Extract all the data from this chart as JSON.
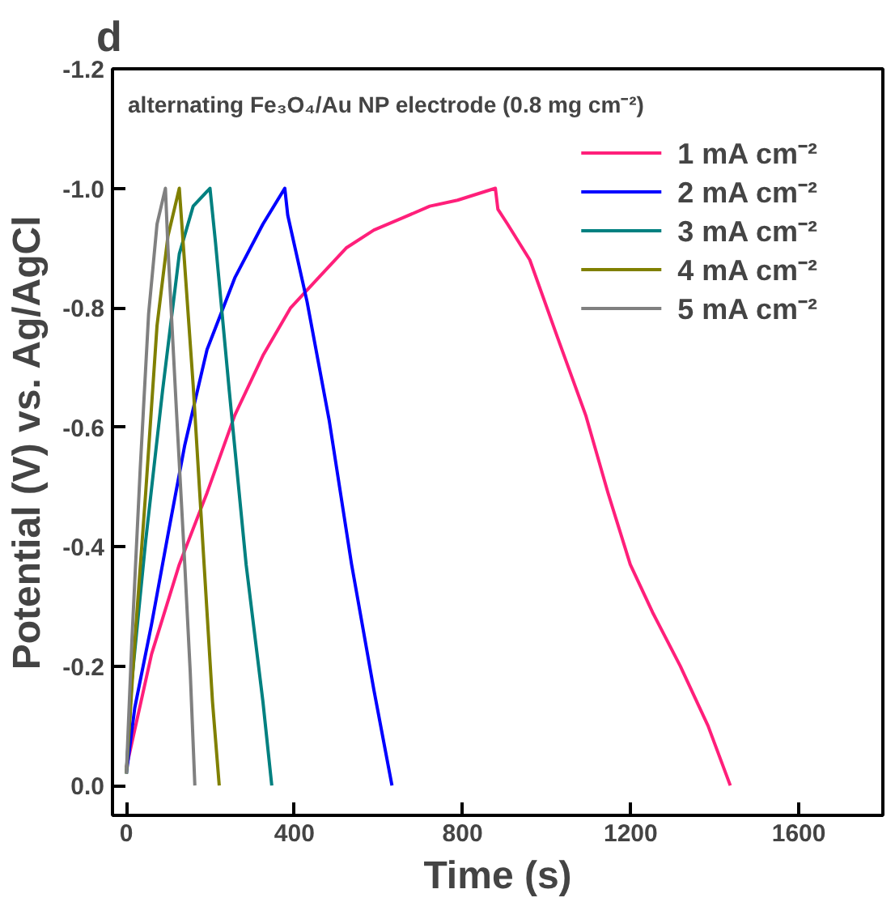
{
  "chart_data": {
    "type": "line",
    "title": "alternating Fe₃O₄/Au NP electrode (0.8 mg cm⁻²)",
    "xlabel": "Time (s)",
    "ylabel": "Potential (V) vs. Ag/AgCl",
    "annotations": [
      "d"
    ],
    "xlim": [
      -33,
      1800
    ],
    "xticks": [
      0,
      400,
      800,
      1200,
      1600
    ],
    "ylim": [
      0.05,
      -1.2
    ],
    "yticks": [
      {
        "value": -1.2,
        "label": "-1.2"
      },
      {
        "value": -1.0,
        "label": "-1.0"
      },
      {
        "value": -0.8,
        "label": "-0.8"
      },
      {
        "value": -0.6,
        "label": "-0.6"
      },
      {
        "value": -0.4,
        "label": "-0.4"
      },
      {
        "value": -0.2,
        "label": "-0.2"
      },
      {
        "value": 0.0,
        "label": "0.0"
      }
    ],
    "grid": false,
    "legend": "top right",
    "marker": "none",
    "line_style": "solid",
    "series": [
      {
        "name": "1 mA cm⁻²",
        "color": "#ff1f7a",
        "x": [
          0,
          60,
          126,
          192,
          258,
          325,
          391,
          457,
          523,
          589,
          656,
          722,
          788,
          878,
          884,
          907,
          960,
          1026,
          1093,
          1146,
          1199,
          1252,
          1318,
          1384,
          1437
        ],
        "values": [
          -0.03,
          -0.22,
          -0.37,
          -0.49,
          -0.62,
          -0.72,
          -0.8,
          -0.85,
          -0.9,
          -0.93,
          -0.95,
          -0.97,
          -0.98,
          -1.0,
          -0.965,
          -0.94,
          -0.88,
          -0.75,
          -0.62,
          -0.49,
          -0.37,
          -0.29,
          -0.2,
          -0.1,
          0.0
        ]
      },
      {
        "name": "2 mA cm⁻²",
        "color": "#0000ff",
        "x": [
          0,
          20,
          60,
          99,
          139,
          192,
          258,
          325,
          377,
          384,
          430,
          483,
          536,
          589,
          632
        ],
        "values": [
          -0.02,
          -0.13,
          -0.27,
          -0.42,
          -0.57,
          -0.73,
          -0.85,
          -0.94,
          -1.0,
          -0.955,
          -0.81,
          -0.61,
          -0.37,
          -0.16,
          0.0
        ]
      },
      {
        "name": "3 mA cm⁻²",
        "color": "#008080",
        "x": [
          0,
          13,
          46,
          86,
          126,
          159,
          199,
          212,
          245,
          285,
          325,
          346
        ],
        "values": [
          -0.02,
          -0.175,
          -0.41,
          -0.66,
          -0.89,
          -0.97,
          -1.0,
          -0.91,
          -0.66,
          -0.37,
          -0.14,
          0.0
        ]
      },
      {
        "name": "4 mA cm⁻²",
        "color": "#808000",
        "x": [
          0,
          20,
          46,
          73,
          99,
          126,
          136,
          159,
          185,
          205,
          221
        ],
        "values": [
          -0.02,
          -0.24,
          -0.49,
          -0.77,
          -0.92,
          -1.0,
          -0.9,
          -0.67,
          -0.37,
          -0.14,
          0.0
        ]
      },
      {
        "name": "5 mA cm⁻²",
        "color": "#808080",
        "x": [
          0,
          13,
          33,
          53,
          73,
          93,
          99,
          119,
          139,
          152,
          163
        ],
        "values": [
          -0.02,
          -0.24,
          -0.53,
          -0.79,
          -0.94,
          -1.0,
          -0.9,
          -0.63,
          -0.37,
          -0.19,
          0.0
        ]
      }
    ]
  }
}
